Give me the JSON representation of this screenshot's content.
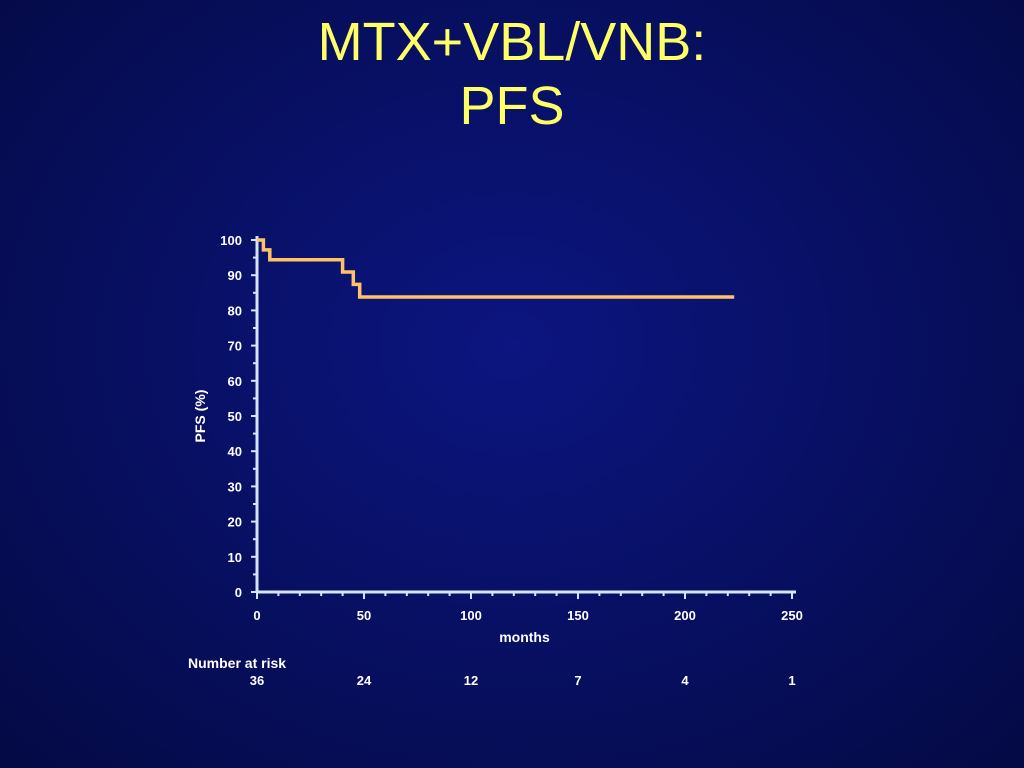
{
  "slide": {
    "title_line1": "MTX+VBL/VNB:",
    "title_line2": "PFS"
  },
  "colors": {
    "title": "#ffff66",
    "axis": "#d8e4ff",
    "curve": "#ffc266",
    "text": "#ffffff"
  },
  "chart_data": {
    "type": "line",
    "title": "",
    "xlabel": "months",
    "ylabel": "PFS (%)",
    "xlim": [
      0,
      250
    ],
    "ylim": [
      0,
      100
    ],
    "x_ticks": [
      0,
      50,
      100,
      150,
      200,
      250
    ],
    "y_ticks": [
      0,
      10,
      20,
      30,
      40,
      50,
      60,
      70,
      80,
      90,
      100
    ],
    "grid": false,
    "step": true,
    "series": [
      {
        "name": "",
        "points": [
          [
            0,
            100
          ],
          [
            3,
            100
          ],
          [
            3,
            97.2
          ],
          [
            6,
            97.2
          ],
          [
            6,
            94.4
          ],
          [
            40,
            94.4
          ],
          [
            40,
            90.9
          ],
          [
            45,
            90.9
          ],
          [
            45,
            87.4
          ],
          [
            48,
            87.4
          ],
          [
            48,
            83.8
          ],
          [
            223,
            83.8
          ]
        ]
      }
    ],
    "number_at_risk": {
      "label": "Number at risk",
      "x": [
        0,
        50,
        100,
        150,
        200,
        250
      ],
      "values": [
        "36",
        "24",
        "12",
        "7",
        "4",
        "1"
      ]
    }
  }
}
